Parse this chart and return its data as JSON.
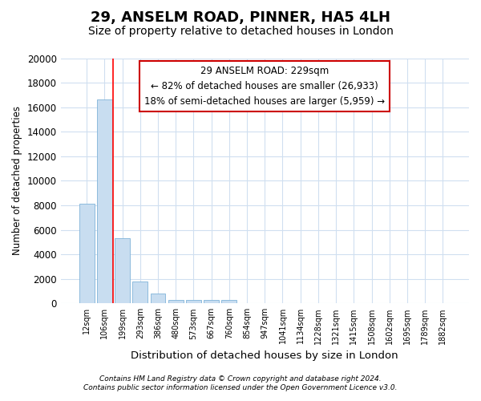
{
  "title": "29, ANSELM ROAD, PINNER, HA5 4LH",
  "subtitle": "Size of property relative to detached houses in London",
  "xlabel": "Distribution of detached houses by size in London",
  "ylabel": "Number of detached properties",
  "categories": [
    "12sqm",
    "106sqm",
    "199sqm",
    "293sqm",
    "386sqm",
    "480sqm",
    "573sqm",
    "667sqm",
    "760sqm",
    "854sqm",
    "947sqm",
    "1041sqm",
    "1134sqm",
    "1228sqm",
    "1321sqm",
    "1415sqm",
    "1508sqm",
    "1602sqm",
    "1695sqm",
    "1789sqm",
    "1882sqm"
  ],
  "values": [
    8100,
    16600,
    5300,
    1800,
    800,
    300,
    290,
    310,
    310,
    5,
    0,
    0,
    0,
    0,
    0,
    0,
    0,
    0,
    0,
    0,
    0
  ],
  "bar_color": "#c8ddf0",
  "bar_edge_color": "#7fb3d9",
  "red_line_x": 1.5,
  "annotation_line1": "29 ANSELM ROAD: 229sqm",
  "annotation_line2": "← 82% of detached houses are smaller (26,933)",
  "annotation_line3": "18% of semi-detached houses are larger (5,959) →",
  "ylim": [
    0,
    20000
  ],
  "yticks": [
    0,
    2000,
    4000,
    6000,
    8000,
    10000,
    12000,
    14000,
    16000,
    18000,
    20000
  ],
  "footnote1": "Contains HM Land Registry data © Crown copyright and database right 2024.",
  "footnote2": "Contains public sector information licensed under the Open Government Licence v3.0.",
  "background_color": "#ffffff",
  "plot_bg_color": "#ffffff",
  "grid_color": "#d0dff0",
  "title_fontsize": 13,
  "subtitle_fontsize": 10,
  "annotation_box_color": "#ffffff",
  "annotation_box_edge": "#cc0000"
}
